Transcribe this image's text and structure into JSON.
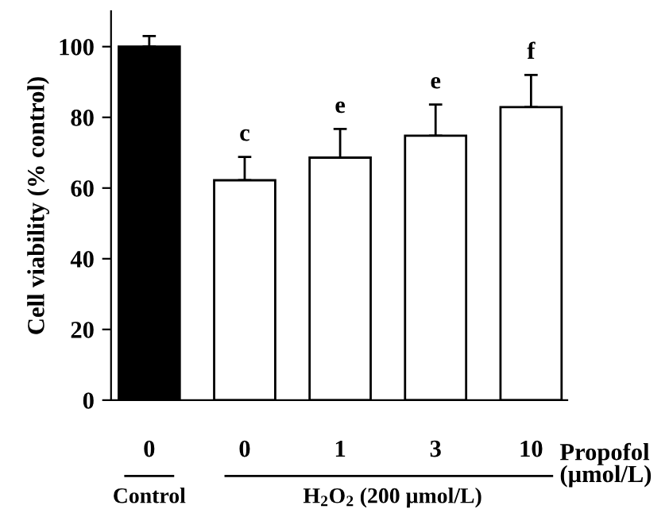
{
  "chart_data": {
    "type": "bar",
    "ylabel": "Cell viability (% control)",
    "categories": [
      "0",
      "0",
      "1",
      "3",
      "10"
    ],
    "values": [
      100,
      62.2,
      68.6,
      74.8,
      82.9
    ],
    "colors": [
      "#000000",
      "#ffffff",
      "#ffffff",
      "#ffffff",
      "#ffffff"
    ],
    "errors": [
      [
        100,
        103
      ],
      [
        62.2,
        68.8
      ],
      [
        68.6,
        76.7
      ],
      [
        74.8,
        83.6
      ],
      [
        82.9,
        92.0
      ]
    ],
    "value_labels": [
      null,
      "c",
      "e",
      "e",
      "f"
    ],
    "annotations": [
      "Propofol\n(µmol/L)",
      "Control",
      "H$_{2}$O$_{2}$ (200 µmol/L)"
    ],
    "ylim": [
      0,
      110
    ],
    "yticks": [
      0,
      20,
      40,
      60,
      80,
      100
    ],
    "grid": false,
    "legend": false
  }
}
